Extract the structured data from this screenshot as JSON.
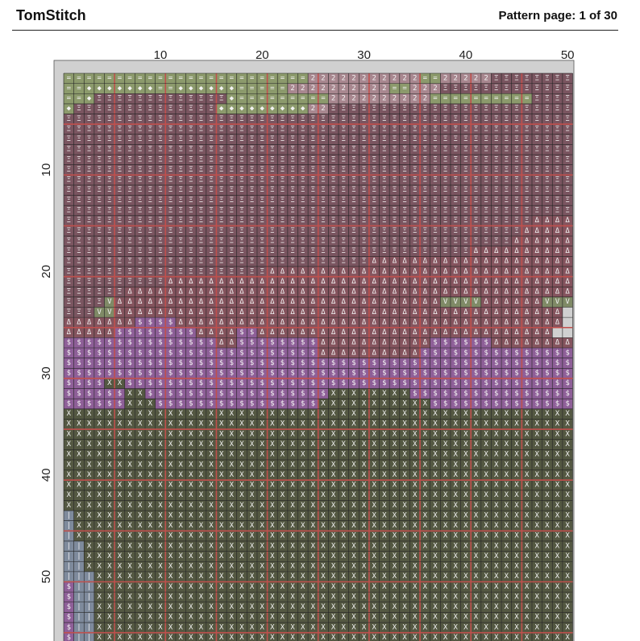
{
  "header": {
    "title": "TomStitch",
    "page": "Pattern page: 1 of 30"
  },
  "pattern": {
    "columns": [
      10,
      20,
      30,
      40,
      50
    ],
    "rows": [
      10,
      20,
      30,
      40,
      50
    ],
    "grid": [
      "========================22222222222==22222ΞΞΞΞΞΞΞΞ",
      "==◆◆◆◆◆◆◆==◆◆◆◆◆◆=====2222222222==222ΞΞΞΞΞΞΞΞΞΞΞΞΞ",
      "==◆ΞΞΞΞΞΞΞΞΞΞΞΞΞ◆=========2222222222==========ΞΞΞΞ",
      "◆ΞΞΞΞΞΞΞΞΞΞΞΞΞΞ◆◆◆◆◆◆◆◆◆22ΞΞΞΞΞΞΞΞΞΞΞΞΞΞΞΞΞΞΞΞΞΞΞΞ",
      "ΞΞΞΞΞΞΞΞΞΞΞΞΞΞΞΞΞΞΞΞΞΞΞΞΞΞΞΞΞΞΞΞΞΞΞΞΞΞΞΞΞΞΞΞΞΞΞΞΞΞ",
      "ΞΞΞΞΞΞΞΞΞΞΞΞΞΞΞΞΞΞΞΞΞΞΞΞΞΞΞΞΞΞΞΞΞΞΞΞΞΞΞΞΞΞΞΞΞΞΞΞΞΞ",
      "ΞΞΞΞΞΞΞΞΞΞΞΞΞΞΞΞΞΞΞΞΞΞΞΞΞΞΞΞΞΞΞΞΞΞΞΞΞΞΞΞΞΞΞΞΞΞΞΞΞΞ",
      "ΞΞΞΞΞΞΞΞΞΞΞΞΞΞΞΞΞΞΞΞΞΞΞΞΞΞΞΞΞΞΞΞΞΞΞΞΞΞΞΞΞΞΞΞΞΞΞΞΞΞ",
      "ΞΞΞΞΞΞΞΞΞΞΞΞΞΞΞΞΞΞΞΞΞΞΞΞΞΞΞΞΞΞΞΞΞΞΞΞΞΞΞΞΞΞΞΞΞΞΞΞΞΞ",
      "ΞΞΞΞΞΞΞΞΞΞΞΞΞΞΞΞΞΞΞΞΞΞΞΞΞΞΞΞΞΞΞΞΞΞΞΞΞΞΞΞΞΞΞΞΞΞΞΞΞΞ",
      "ΞΞΞΞΞΞΞΞΞΞΞΞΞΞΞΞΞΞΞΞΞΞΞΞΞΞΞΞΞΞΞΞΞΞΞΞΞΞΞΞΞΞΞΞΞΞΞΞΞΞ",
      "ΞΞΞΞΞΞΞΞΞΞΞΞΞΞΞΞΞΞΞΞΞΞΞΞΞΞΞΞΞΞΞΞΞΞΞΞΞΞΞΞΞΞΞΞΞΞΞΞΞΞ",
      "ΞΞΞΞΞΞΞΞΞΞΞΞΞΞΞΞΞΞΞΞΞΞΞΞΞΞΞΞΞΞΞΞΞΞΞΞΞΞΞΞΞΞΞΞΞΞΞΞΞΞ",
      "ΞΞΞΞΞΞΞΞΞΞΞΞΞΞΞΞΞΞΞΞΞΞΞΞΞΞΞΞΞΞΞΞΞΞΞΞΞΞΞΞΞΞΞΞΞΞΞΞΞΞ",
      "ΞΞΞΞΞΞΞΞΞΞΞΞΞΞΞΞΞΞΞΞΞΞΞΞΞΞΞΞΞΞΞΞΞΞΞΞΞΞΞΞΞΞΞΞΞΞΔΔΔΔ",
      "ΞΞΞΞΞΞΞΞΞΞΞΞΞΞΞΞΞΞΞΞΞΞΞΞΞΞΞΞΞΞΞΞΞΞΞΞΞΞΞΞΞΞΞΞΞΔΔΔΔΔ",
      "ΞΞΞΞΞΞΞΞΞΞΞΞΞΞΞΞΞΞΞΞΞΞΞΞΞΞΞΞΞΞΞΞΞΞΞΞΞΞΞΞΞΞΞΞΔΔΔΔΔΔ",
      "ΞΞΞΞΞΞΞΞΞΞΞΞΞΞΞΞΞΞΞΞΞΞΞΞΞΞΞΞΞΞΞΞΞΞΞΞΞΞΞΞΔΔΔΔΔΔΔΔΔΔ",
      "ΞΞΞΞΞΞΞΞΞΞΞΞΞΞΞΞΞΞΞΞΞΞΞΞΞΞΞΞΞΞΔΔΔΔΔΔΔΔΔΔΔΔΔΔΔΔΔΔΔΔ",
      "ΞΞΞΞΞΞΞΞΞΞΞΞΞΞΞΞΞΞΞΞΔΔΔΔΔΔΔΔΔΔΔΔΔΔΔΔΔΔΔΔΔΔΔΔΔΔΔΔΔΔ",
      "ΞΞΞΞΞΞΞΞΞΞΔΔΔΔΔΔΔΔΔΔΔΔΔΔΔΔΔΔΔΔΔΔΔΔΔΔΔΔΔΔΔΔΔΔΔΔΔΔΔΔ",
      "ΞΞΞΞΞΞΔΔΔΔΔΔΔΔΔΔΔΔΔΔΔΔΔΔΔΔΔΔΔΔΔΔΔΔΔΔΔΔΔΔΔΔΔΔΔΔΔΔΔΔ",
      "ΞΞΞΞVΔΔΔΔΔΔΔΔΔΔΔΔΔΔΔΔΔΔΔΔΔΔΔΔΔΔΔΔΔΔΔΔVVVVΔΔΔΔΔΔVVV",
      "ΞΞΞVVΔΔΔΔΔΔΔΔΔΔΔΔΔΔΔΔΔΔΔΔΔΔΔΔΔΔΔΔΔΔΔΔΔΔΔΔΔΔΔΔΔΔΔΔ",
      "ΔΔΔΔΔΔΔ$$$$ΔΔΔΔΔΔΔΔΔΔΔΔΔΔΔΔΔΔΔΔΔΔΔΔΔΔΔΔΔΔΔΔΔΔΔΔΔΔ",
      "ΔΔΔΔΔ$$$$$$$$ΔΔΔΔ$$ΔΔΔΔΔΔΔΔΔΔΔΔΔΔΔΔΔΔΔΔΔΔΔΔΔΔΔΔΔ",
      "$$$$$$$$$$$$$$$ΔΔ$$$$$$$$ΔΔΔΔΔΔΔΔΔΔΔ$$$$$$ΔΔΔΔΔΔΔΔ",
      "$$$$$$$$$$$$$$$$$$$$$$$$$ΔΔΔΔΔΔΔΔΔΔ$$$$$$$$$$$$$$$",
      "$$$$$$$$$$$$$$$$$$$$$$$$$$$$$$$$$$$$$$$$$$$$$$$$$$",
      "$$$$$$$$$$$$$$$$$$$$$$$$$$$$$$$$$$$$$$$$$$$$$$$$$$",
      "$$$$XX$$$$$$$$$$$$$$$$$$$$$$$$$$$$$$$$$$$$$$$$$$$$",
      "$$$$$$XX$$$$$$$$$$$$$$$$$$XXXXXXXX$$$$$$$$$$$$$$$$",
      "$$$$$$XXX$$$$$$$$$$$$$$$$XXXXXXXXXXX$$$$$$$$$$$$$$",
      "XXXXXXXXXXXXXXXXXXXXXXXXXXXXXXXXXXXXXXXXXXXXXXXXXX",
      "XXXXXXXXXXXXXXXXXXXXXXXXXXXXXXXXXXXXXXXXXXXXXXXXXX",
      "XXXXXXXXXXXXXXXXXXXXXXXXXXXXXXXXXXXXXXXXXXXXXXXXXX",
      "XXXXXXXXXXXXXXXXXXXXXXXXXXXXXXXXXXXXXXXXXXXXXXXXXX",
      "XXXXXXXXXXXXXXXXXXXXXXXXXXXXXXXXXXXXXXXXXXXXXXXXXX",
      "XXXXXXXXXXXXXXXXXXXXXXXXXXXXXXXXXXXXXXXXXXXXXXXXXX",
      "XXXXXXXXXXXXXXXXXXXXXXXXXXXXXXXXXXXXXXXXXXXXXXXXXX",
      "XXXXXXXXXXXXXXXXXXXXXXXXXXXXXXXXXXXXXXXXXXXXXXXXXX",
      "XXXXXXXXXXXXXXXXXXXXXXXXXXXXXXXXXXXXXXXXXXXXXXXXXX",
      "XXXXXXXXXXXXXXXXXXXXXXXXXXXXXXXXXXXXXXXXXXXXXXXXXX",
      "|XXXXXXXXXXXXXXXXXXXXXXXXXXXXXXXXXXXXXXXXXXXXXXXXX",
      "|XXXXXXXXXXXXXXXXXXXXXXXXXXXXXXXXXXXXXXXXXXXXXXXXX",
      "|XXXXXXXXXXXXXXXXXXXXXXXXXXXXXXXXXXXXXXXXXXXXXXXXX",
      "||XXXXXXXXXXXXXXXXXXXXXXXXXXXXXXXXXXXXXXXXXXXXXXXX",
      "||XXXXXXXXXXXXXXXXXXXXXXXXXXXXXXXXXXXXXXXXXXXXXXXX",
      "||XXXXXXXXXXXXXXXXXXXXXXXXXXXXXXXXXXXXXXXXXXXXXXXX",
      "|||XXXXXXXXXXXXXXXXXXXXXXXXXXXXXXXXXXXXXXXXXXXXXXX",
      "$||XXXXXXXXXXXXXXXXXXXXXXXXXXXXXXXXXXXXXXXXXXXXXXX",
      "$||XXXXXXXXXXXXXXXXXXXXXXXXXXXXXXXXXXXXXXXXXXXXXXX",
      "$||XXXXXXXXXXXXXXXXXXXXXXXXXXXXXXXXXXXXXXXXXXXXXXX",
      "$||XXXXXXXXXXXXXXXXXXXXXXXXXXXXXXXXXXXXXXXXXXXXXXX",
      "$||XXXXXXXXXXXXXXXXXXXXXXXXXXXXXXXXXXXXXXXXXXXXXXX",
      "$||XXXXXXXXXXXXXXXXXXXXXXXXXXXXXXXXXXXXXXXXXXXXXXX"
    ]
  }
}
